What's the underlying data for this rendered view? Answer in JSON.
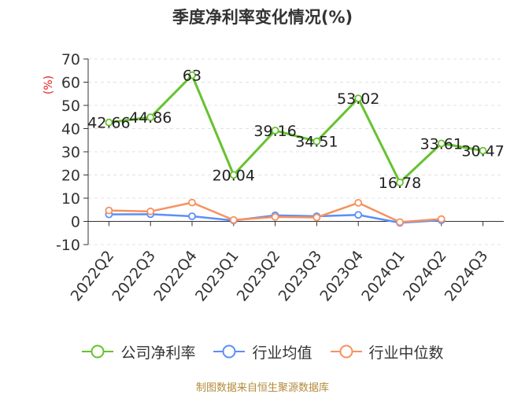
{
  "chart_data": {
    "type": "line",
    "title": "季度净利率变化情况(%)",
    "ylabel": "(%)",
    "ylim": [
      -10,
      70
    ],
    "yticks": [
      -10,
      0,
      10,
      20,
      30,
      40,
      50,
      60,
      70
    ],
    "categories": [
      "2022Q2",
      "2022Q3",
      "2022Q4",
      "2023Q1",
      "2023Q2",
      "2023Q3",
      "2023Q4",
      "2024Q1",
      "2024Q2",
      "2024Q3"
    ],
    "series": [
      {
        "name": "公司净利率",
        "color": "#66c22e",
        "show_labels": true,
        "values": [
          42.66,
          44.86,
          63,
          20.04,
          39.16,
          34.51,
          53.02,
          16.78,
          33.61,
          30.47
        ]
      },
      {
        "name": "行业均值",
        "color": "#5b8ff9",
        "show_labels": false,
        "values": [
          3.0,
          3.1,
          2.2,
          0.4,
          2.6,
          2.2,
          2.8,
          -0.6,
          0.5,
          null
        ]
      },
      {
        "name": "行业中位数",
        "color": "#f7915e",
        "show_labels": false,
        "values": [
          4.7,
          4.3,
          8.1,
          0.6,
          1.9,
          1.7,
          8.0,
          -0.3,
          1.0,
          null
        ]
      }
    ],
    "grid": true,
    "legend_position": "bottom"
  },
  "source_text": "制图数据来自恒生聚源数据库"
}
